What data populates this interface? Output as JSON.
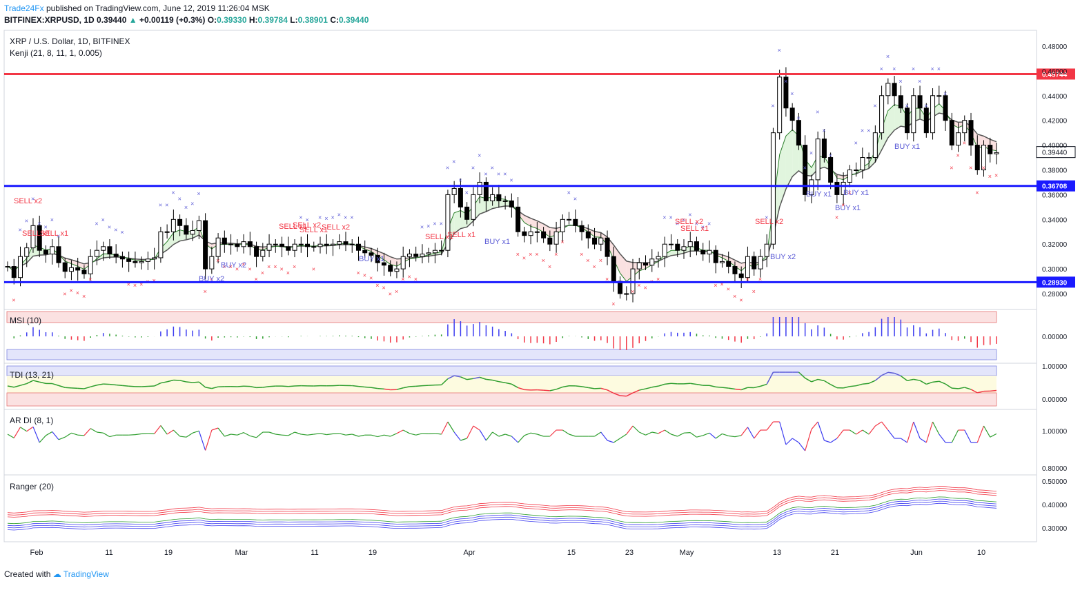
{
  "header": {
    "publisher": "Trade24Fx",
    "published_text": "published on TradingView.com, June 12, 2019 11:26:04 MSK",
    "symbol": "BITFINEX:XRPUSD, 1D",
    "last": "0.39440",
    "change": "+0.00119 (+0.3%)",
    "open_label": "O:",
    "open": "0.39330",
    "high_label": "H:",
    "high": "0.39784",
    "low_label": "L:",
    "low": "0.38901",
    "close_label": "C:",
    "close": "0.39440"
  },
  "footer": {
    "created_with": "Created with",
    "brand": "TradingView"
  },
  "chart_data": [
    {
      "type": "candlestick",
      "title": "XRP / U.S. Dollar, 1D, BITFINEX",
      "indicator": "Kenji (21, 8, 11, 1, 0.005)",
      "ylim": [
        0.27,
        0.49
      ],
      "y_ticks": [
        "0.48000",
        "0.46000",
        "0.44000",
        "0.42000",
        "0.40000",
        "0.39440",
        "0.38000",
        "0.36708",
        "0.36000",
        "0.34000",
        "0.32000",
        "0.30000",
        "0.28930",
        "0.28000"
      ],
      "x_tick_labels": [
        "Feb",
        "11",
        "19",
        "Mar",
        "11",
        "19",
        "Apr",
        "15",
        "23",
        "May",
        "13",
        "21",
        "Jun",
        "10"
      ],
      "horizontal_lines": [
        {
          "value": 0.45744,
          "label": "0.45744",
          "color": "#f23645"
        },
        {
          "value": 0.36708,
          "label": "0.36708",
          "color": "#1a1aff"
        },
        {
          "value": 0.2893,
          "label": "0.28930",
          "color": "#1a1aff"
        }
      ],
      "last_price_label": "0.39440",
      "signals": [
        {
          "text": "SELL x2",
          "color": "#f23645"
        },
        {
          "text": "SELL x1",
          "color": "#f23645"
        },
        {
          "text": "SELL x1",
          "color": "#f23645"
        },
        {
          "text": "BUY x2",
          "color": "#5b5bd6"
        },
        {
          "text": "BUY x2",
          "color": "#5b5bd6"
        },
        {
          "text": "SELL x1",
          "color": "#f23645"
        },
        {
          "text": "SELL x2",
          "color": "#f23645"
        },
        {
          "text": "SELL x1",
          "color": "#f23645"
        },
        {
          "text": "SELL x2",
          "color": "#f23645"
        },
        {
          "text": "BUY x1",
          "color": "#5b5bd6"
        },
        {
          "text": "SELL x1",
          "color": "#f23645"
        },
        {
          "text": "SELL x1",
          "color": "#f23645"
        },
        {
          "text": "BUY x1",
          "color": "#5b5bd6"
        },
        {
          "text": "SELL x2",
          "color": "#f23645"
        },
        {
          "text": "SELL x1",
          "color": "#f23645"
        },
        {
          "text": "SELL x2",
          "color": "#f23645"
        },
        {
          "text": "BUY x2",
          "color": "#5b5bd6"
        },
        {
          "text": "BUY x1",
          "color": "#5b5bd6"
        },
        {
          "text": "BUY x1",
          "color": "#5b5bd6"
        },
        {
          "text": "BUY x1",
          "color": "#5b5bd6"
        },
        {
          "text": "BUY x1",
          "color": "#5b5bd6"
        }
      ],
      "closes": [
        0.302,
        0.293,
        0.31,
        0.317,
        0.335,
        0.315,
        0.312,
        0.318,
        0.305,
        0.298,
        0.301,
        0.299,
        0.296,
        0.31,
        0.315,
        0.318,
        0.312,
        0.31,
        0.308,
        0.306,
        0.305,
        0.306,
        0.308,
        0.309,
        0.33,
        0.33,
        0.34,
        0.335,
        0.328,
        0.331,
        0.339,
        0.3,
        0.31,
        0.325,
        0.32,
        0.32,
        0.318,
        0.322,
        0.318,
        0.31,
        0.315,
        0.32,
        0.32,
        0.318,
        0.315,
        0.32,
        0.32,
        0.318,
        0.318,
        0.32,
        0.319,
        0.32,
        0.322,
        0.32,
        0.32,
        0.315,
        0.313,
        0.311,
        0.305,
        0.303,
        0.298,
        0.3,
        0.31,
        0.312,
        0.31,
        0.312,
        0.313,
        0.315,
        0.315,
        0.36,
        0.365,
        0.35,
        0.34,
        0.36,
        0.37,
        0.355,
        0.36,
        0.355,
        0.355,
        0.35,
        0.33,
        0.327,
        0.33,
        0.33,
        0.325,
        0.32,
        0.33,
        0.34,
        0.34,
        0.335,
        0.33,
        0.325,
        0.32,
        0.325,
        0.31,
        0.29,
        0.28,
        0.28,
        0.3,
        0.305,
        0.303,
        0.308,
        0.31,
        0.32,
        0.32,
        0.315,
        0.318,
        0.322,
        0.315,
        0.312,
        0.315,
        0.305,
        0.306,
        0.302,
        0.296,
        0.293,
        0.31,
        0.3,
        0.31,
        0.32,
        0.41,
        0.455,
        0.43,
        0.42,
        0.4,
        0.36,
        0.372,
        0.405,
        0.39,
        0.37,
        0.36,
        0.37,
        0.38,
        0.38,
        0.39,
        0.39,
        0.41,
        0.44,
        0.45,
        0.44,
        0.43,
        0.41,
        0.44,
        0.43,
        0.41,
        0.44,
        0.44,
        0.42,
        0.4,
        0.41,
        0.42,
        0.4,
        0.38,
        0.4,
        0.393,
        0.394
      ],
      "subpanels": [
        {
          "name": "MSI (10)",
          "yticks": [
            "0.00000"
          ]
        },
        {
          "name": "TDI (13, 21)",
          "yticks": [
            "1.00000",
            "0.00000"
          ]
        },
        {
          "name": "AR DI (8, 1)",
          "yticks": [
            "1.00000",
            "0.80000"
          ]
        },
        {
          "name": "Ranger (20)",
          "yticks": [
            "0.50000",
            "0.40000",
            "0.30000"
          ]
        }
      ]
    }
  ]
}
